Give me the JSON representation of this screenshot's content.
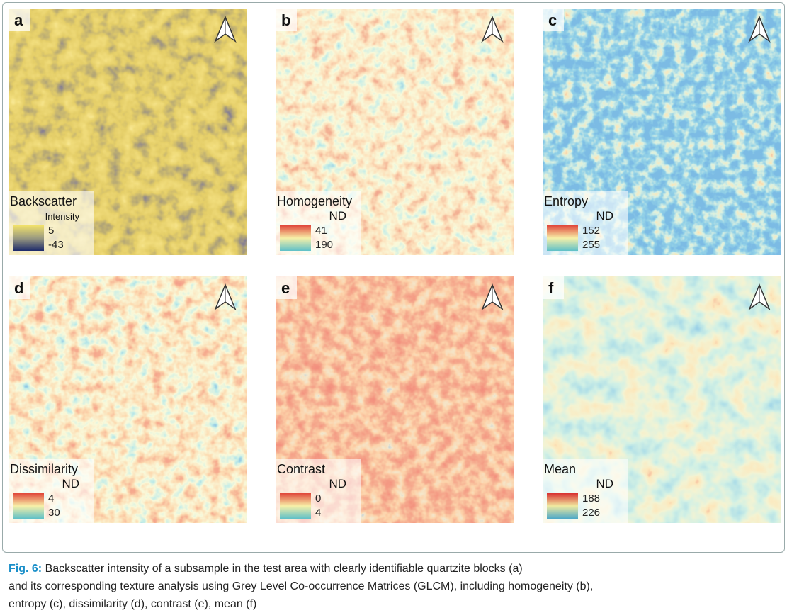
{
  "panels": [
    {
      "letter": "a",
      "legend_title": "Backscatter",
      "legend_unit": "Intensity",
      "legend_top": 5,
      "legend_bottom": -43
    },
    {
      "letter": "b",
      "legend_title": "Homogeneity",
      "legend_unit": "ND",
      "legend_top": 41,
      "legend_bottom": 190
    },
    {
      "letter": "c",
      "legend_title": "Entropy",
      "legend_unit": "ND",
      "legend_top": 152,
      "legend_bottom": 255
    },
    {
      "letter": "d",
      "legend_title": "Dissimilarity",
      "legend_unit": "ND",
      "legend_top": 4,
      "legend_bottom": 30
    },
    {
      "letter": "e",
      "legend_title": "Contrast",
      "legend_unit": "ND",
      "legend_top": 0,
      "legend_bottom": 4
    },
    {
      "letter": "f",
      "legend_title": "Mean",
      "legend_unit": "ND",
      "legend_top": 188,
      "legend_bottom": 226
    }
  ],
  "caption": {
    "label": "Fig. 6:",
    "lines": [
      "Backscatter intensity of a subsample in the test area with clearly identifiable quartzite blocks (a)",
      "and its corresponding texture analysis using Grey Level Co-occurrence Matrices (GLCM), including homogeneity (b),",
      "entropy (c), dissimilarity (d), contrast (e), mean (f)"
    ]
  }
}
